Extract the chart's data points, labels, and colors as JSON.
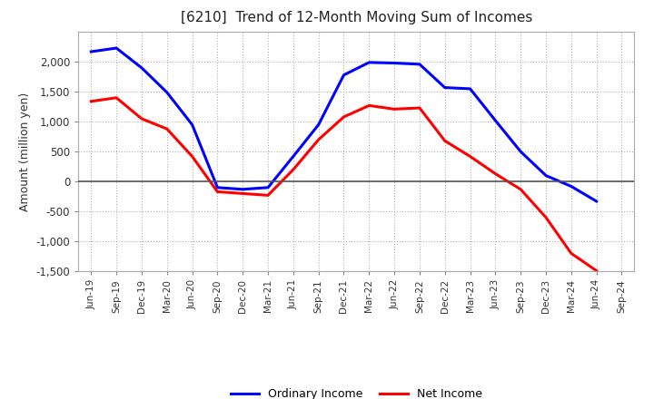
{
  "title": "[6210]  Trend of 12-Month Moving Sum of Incomes",
  "ylabel": "Amount (million yen)",
  "background_color": "#ffffff",
  "grid_color": "#b0b0b0",
  "x_labels": [
    "Jun-19",
    "Sep-19",
    "Dec-19",
    "Mar-20",
    "Jun-20",
    "Sep-20",
    "Dec-20",
    "Mar-21",
    "Jun-21",
    "Sep-21",
    "Dec-21",
    "Mar-22",
    "Jun-22",
    "Sep-22",
    "Dec-22",
    "Mar-23",
    "Jun-23",
    "Sep-23",
    "Dec-23",
    "Mar-24",
    "Jun-24",
    "Sep-24"
  ],
  "ordinary_income": [
    2170,
    2230,
    1900,
    1490,
    950,
    -100,
    -130,
    -100,
    420,
    950,
    1780,
    1990,
    1980,
    1960,
    1570,
    1550,
    1020,
    500,
    100,
    -80,
    -330,
    null
  ],
  "net_income": [
    1340,
    1400,
    1050,
    880,
    420,
    -170,
    -200,
    -230,
    200,
    700,
    1080,
    1270,
    1210,
    1230,
    680,
    420,
    130,
    -130,
    -600,
    -1200,
    -1490,
    null
  ],
  "ylim": [
    -1500,
    2500
  ],
  "yticks": [
    -1500,
    -1000,
    -500,
    0,
    500,
    1000,
    1500,
    2000
  ],
  "ordinary_color": "#0000ff",
  "net_color": "#ff0000",
  "line_width": 2.2
}
